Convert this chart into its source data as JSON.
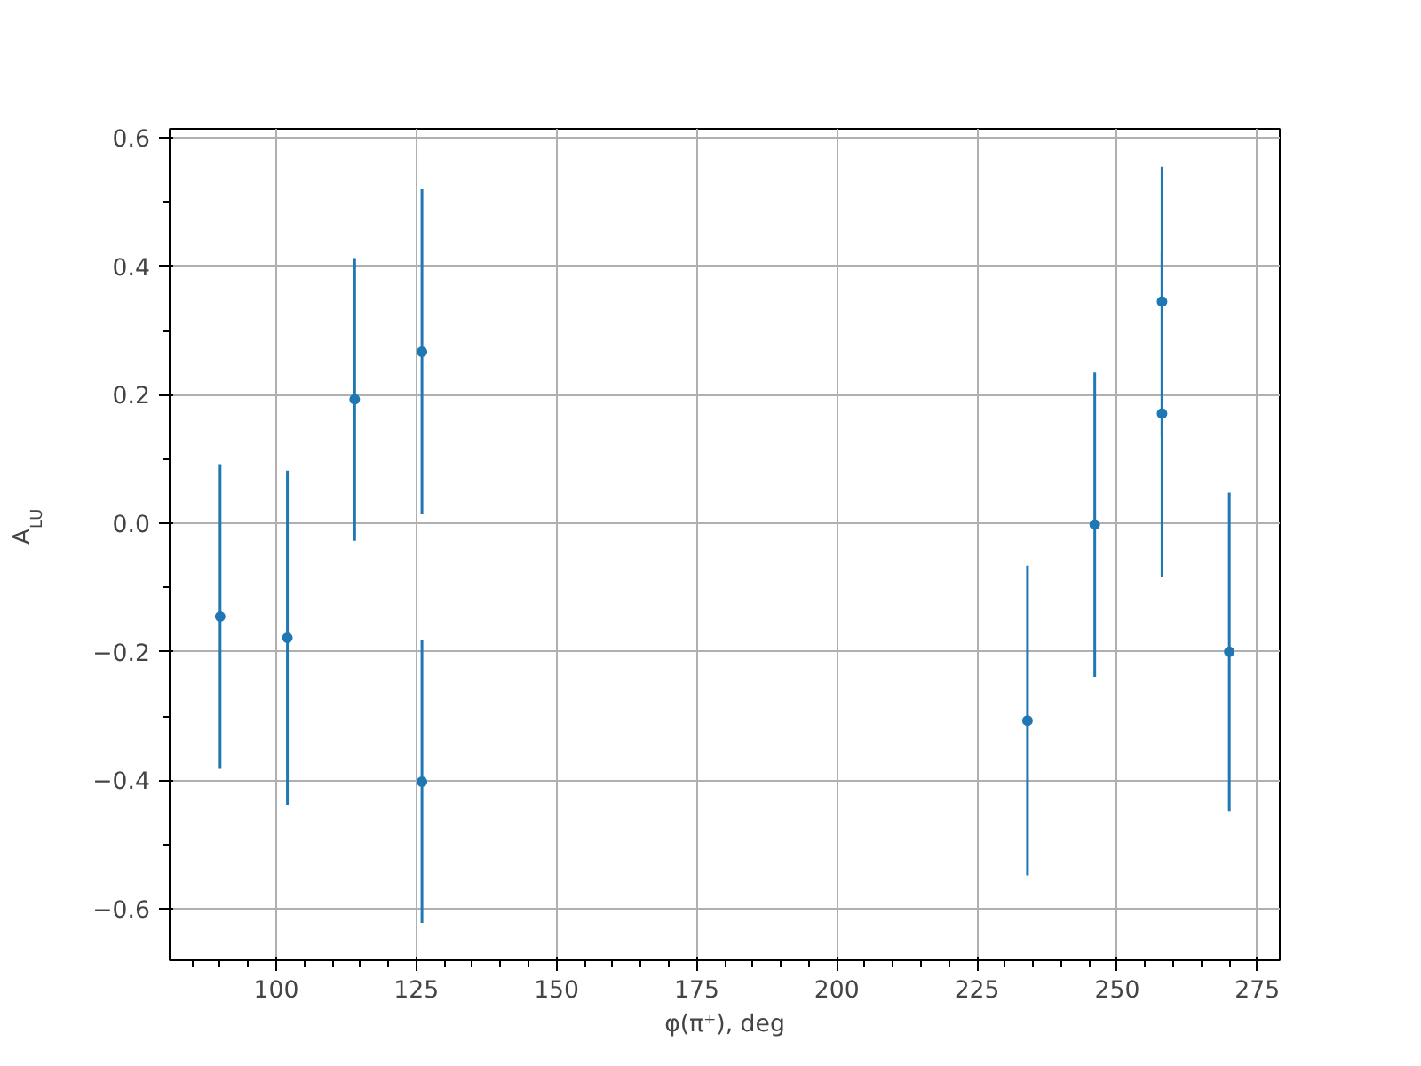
{
  "chart_data": {
    "type": "scatter",
    "xlabel": "φ(π⁺), deg",
    "ylabel": "A$_{LU}$",
    "x": [
      90,
      102,
      114,
      126,
      126,
      234,
      246,
      258,
      258,
      270
    ],
    "values": [
      -0.145,
      -0.178,
      0.193,
      0.267,
      -0.402,
      -0.307,
      -0.002,
      0.345,
      0.171,
      -0.2
    ],
    "errors": [
      0.237,
      0.26,
      0.22,
      0.253,
      0.22,
      0.241,
      0.237,
      0.21,
      0.254,
      0.248
    ],
    "color": "#1f77b4",
    "marker": "circle",
    "grid": true,
    "xlim": [
      81,
      279
    ],
    "ylim": [
      -0.68,
      0.614
    ],
    "xticks": [
      100,
      125,
      150,
      175,
      200,
      225,
      250,
      275
    ],
    "yticks": [
      {
        "value": -0.6,
        "label": "−0.6"
      },
      {
        "value": -0.4,
        "label": "−0.4"
      },
      {
        "value": -0.2,
        "label": "−0.2"
      },
      {
        "value": 0,
        "label": "0.0"
      },
      {
        "value": 0.2,
        "label": "0.2"
      },
      {
        "value": 0.4,
        "label": "0.4"
      },
      {
        "value": 0.6,
        "label": "0.6"
      }
    ]
  }
}
